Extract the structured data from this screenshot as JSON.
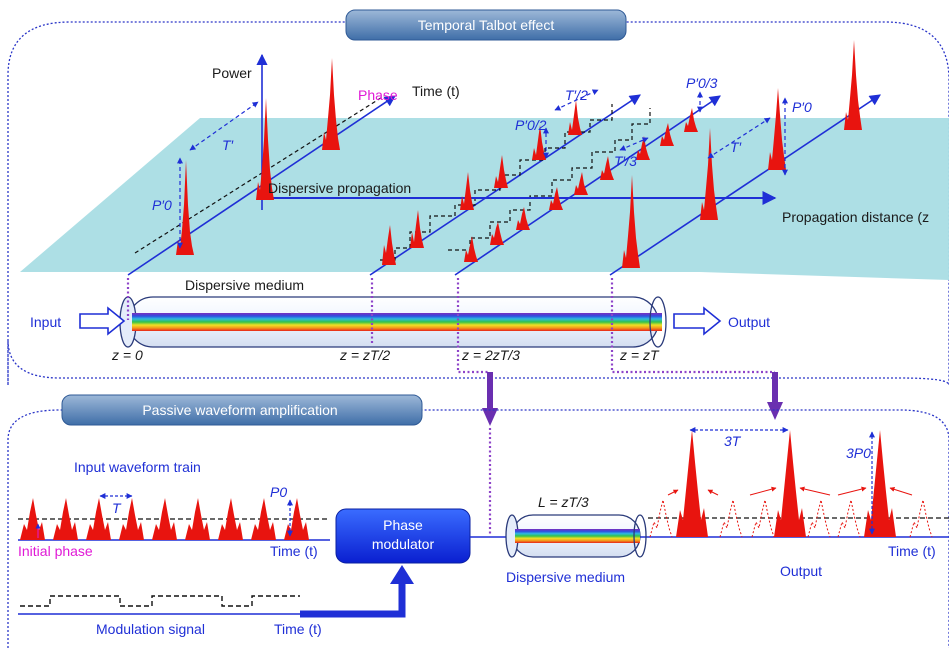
{
  "top_panel": {
    "title": "Temporal Talbot effect",
    "power_label": "Power",
    "phase_label": "Phase",
    "time_label": "Time (t)",
    "dispersive_propagation": "Dispersive propagation",
    "propagation_distance": "Propagation distance (z",
    "dispersive_medium": "Dispersive medium",
    "input": "Input",
    "output": "Output",
    "period_label": "T′",
    "half_period_label": "T′/2",
    "third_period_label": "T′/3",
    "amp_label": "P′0",
    "amp_half_label": "P′0/2",
    "amp_third_label": "P′0/3",
    "z_positions": [
      "z = 0",
      "z = zT/2",
      "z = 2zT/3",
      "z = zT"
    ]
  },
  "bottom_panel": {
    "title": "Passive waveform amplification",
    "input_train": "Input waveform train",
    "period_label": "T",
    "amp_label": "P0",
    "initial_phase": "Initial phase",
    "time_label": "Time (t)",
    "modulator": [
      "Phase",
      "modulator"
    ],
    "fiber_length": "L = zT/3",
    "dispersive_medium": "Dispersive medium",
    "output": "Output",
    "output_period": "3T",
    "output_amp": "3P0",
    "modulation_signal": "Modulation signal",
    "time_label_2": "Time (t)",
    "time_label_3": "Time (t)"
  },
  "colors": {
    "pulse": "#e8140f",
    "axis": "#1f2fd6",
    "plane": "#a9dde4",
    "guide": "#8e44c9",
    "phase_text": "#e01ad6"
  }
}
